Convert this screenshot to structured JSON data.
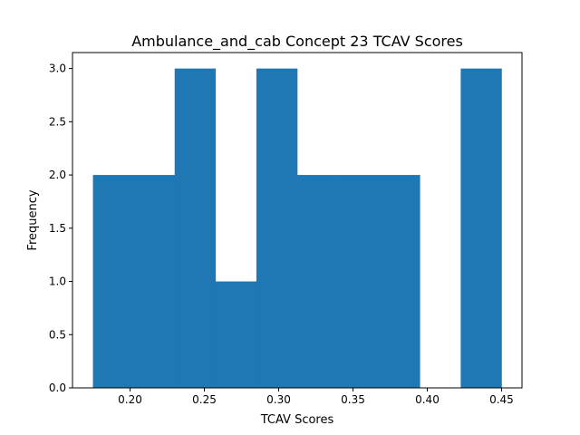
{
  "chart_data": {
    "type": "bar",
    "title": "Ambulance_and_cab Concept 23 TCAV Scores",
    "xlabel": "TCAV Scores",
    "ylabel": "Frequency",
    "bins": [
      {
        "start": 0.175,
        "end": 0.2025,
        "count": 2
      },
      {
        "start": 0.2025,
        "end": 0.23,
        "count": 2
      },
      {
        "start": 0.23,
        "end": 0.2575,
        "count": 3
      },
      {
        "start": 0.2575,
        "end": 0.285,
        "count": 1
      },
      {
        "start": 0.285,
        "end": 0.3125,
        "count": 3
      },
      {
        "start": 0.3125,
        "end": 0.34,
        "count": 2
      },
      {
        "start": 0.34,
        "end": 0.3675,
        "count": 2
      },
      {
        "start": 0.3675,
        "end": 0.395,
        "count": 2
      },
      {
        "start": 0.395,
        "end": 0.4225,
        "count": 0
      },
      {
        "start": 0.4225,
        "end": 0.45,
        "count": 3
      }
    ],
    "xlim": [
      0.16125,
      0.46375
    ],
    "ylim": [
      0,
      3.15
    ],
    "xticks": [
      0.2,
      0.25,
      0.3,
      0.35,
      0.4,
      0.45
    ],
    "xtick_labels": [
      "0.20",
      "0.25",
      "0.30",
      "0.35",
      "0.40",
      "0.45"
    ],
    "yticks": [
      0.0,
      0.5,
      1.0,
      1.5,
      2.0,
      2.5,
      3.0
    ],
    "ytick_labels": [
      "0.0",
      "0.5",
      "1.0",
      "1.5",
      "2.0",
      "2.5",
      "3.0"
    ],
    "grid": false,
    "bar_color": "#1f77b4"
  }
}
